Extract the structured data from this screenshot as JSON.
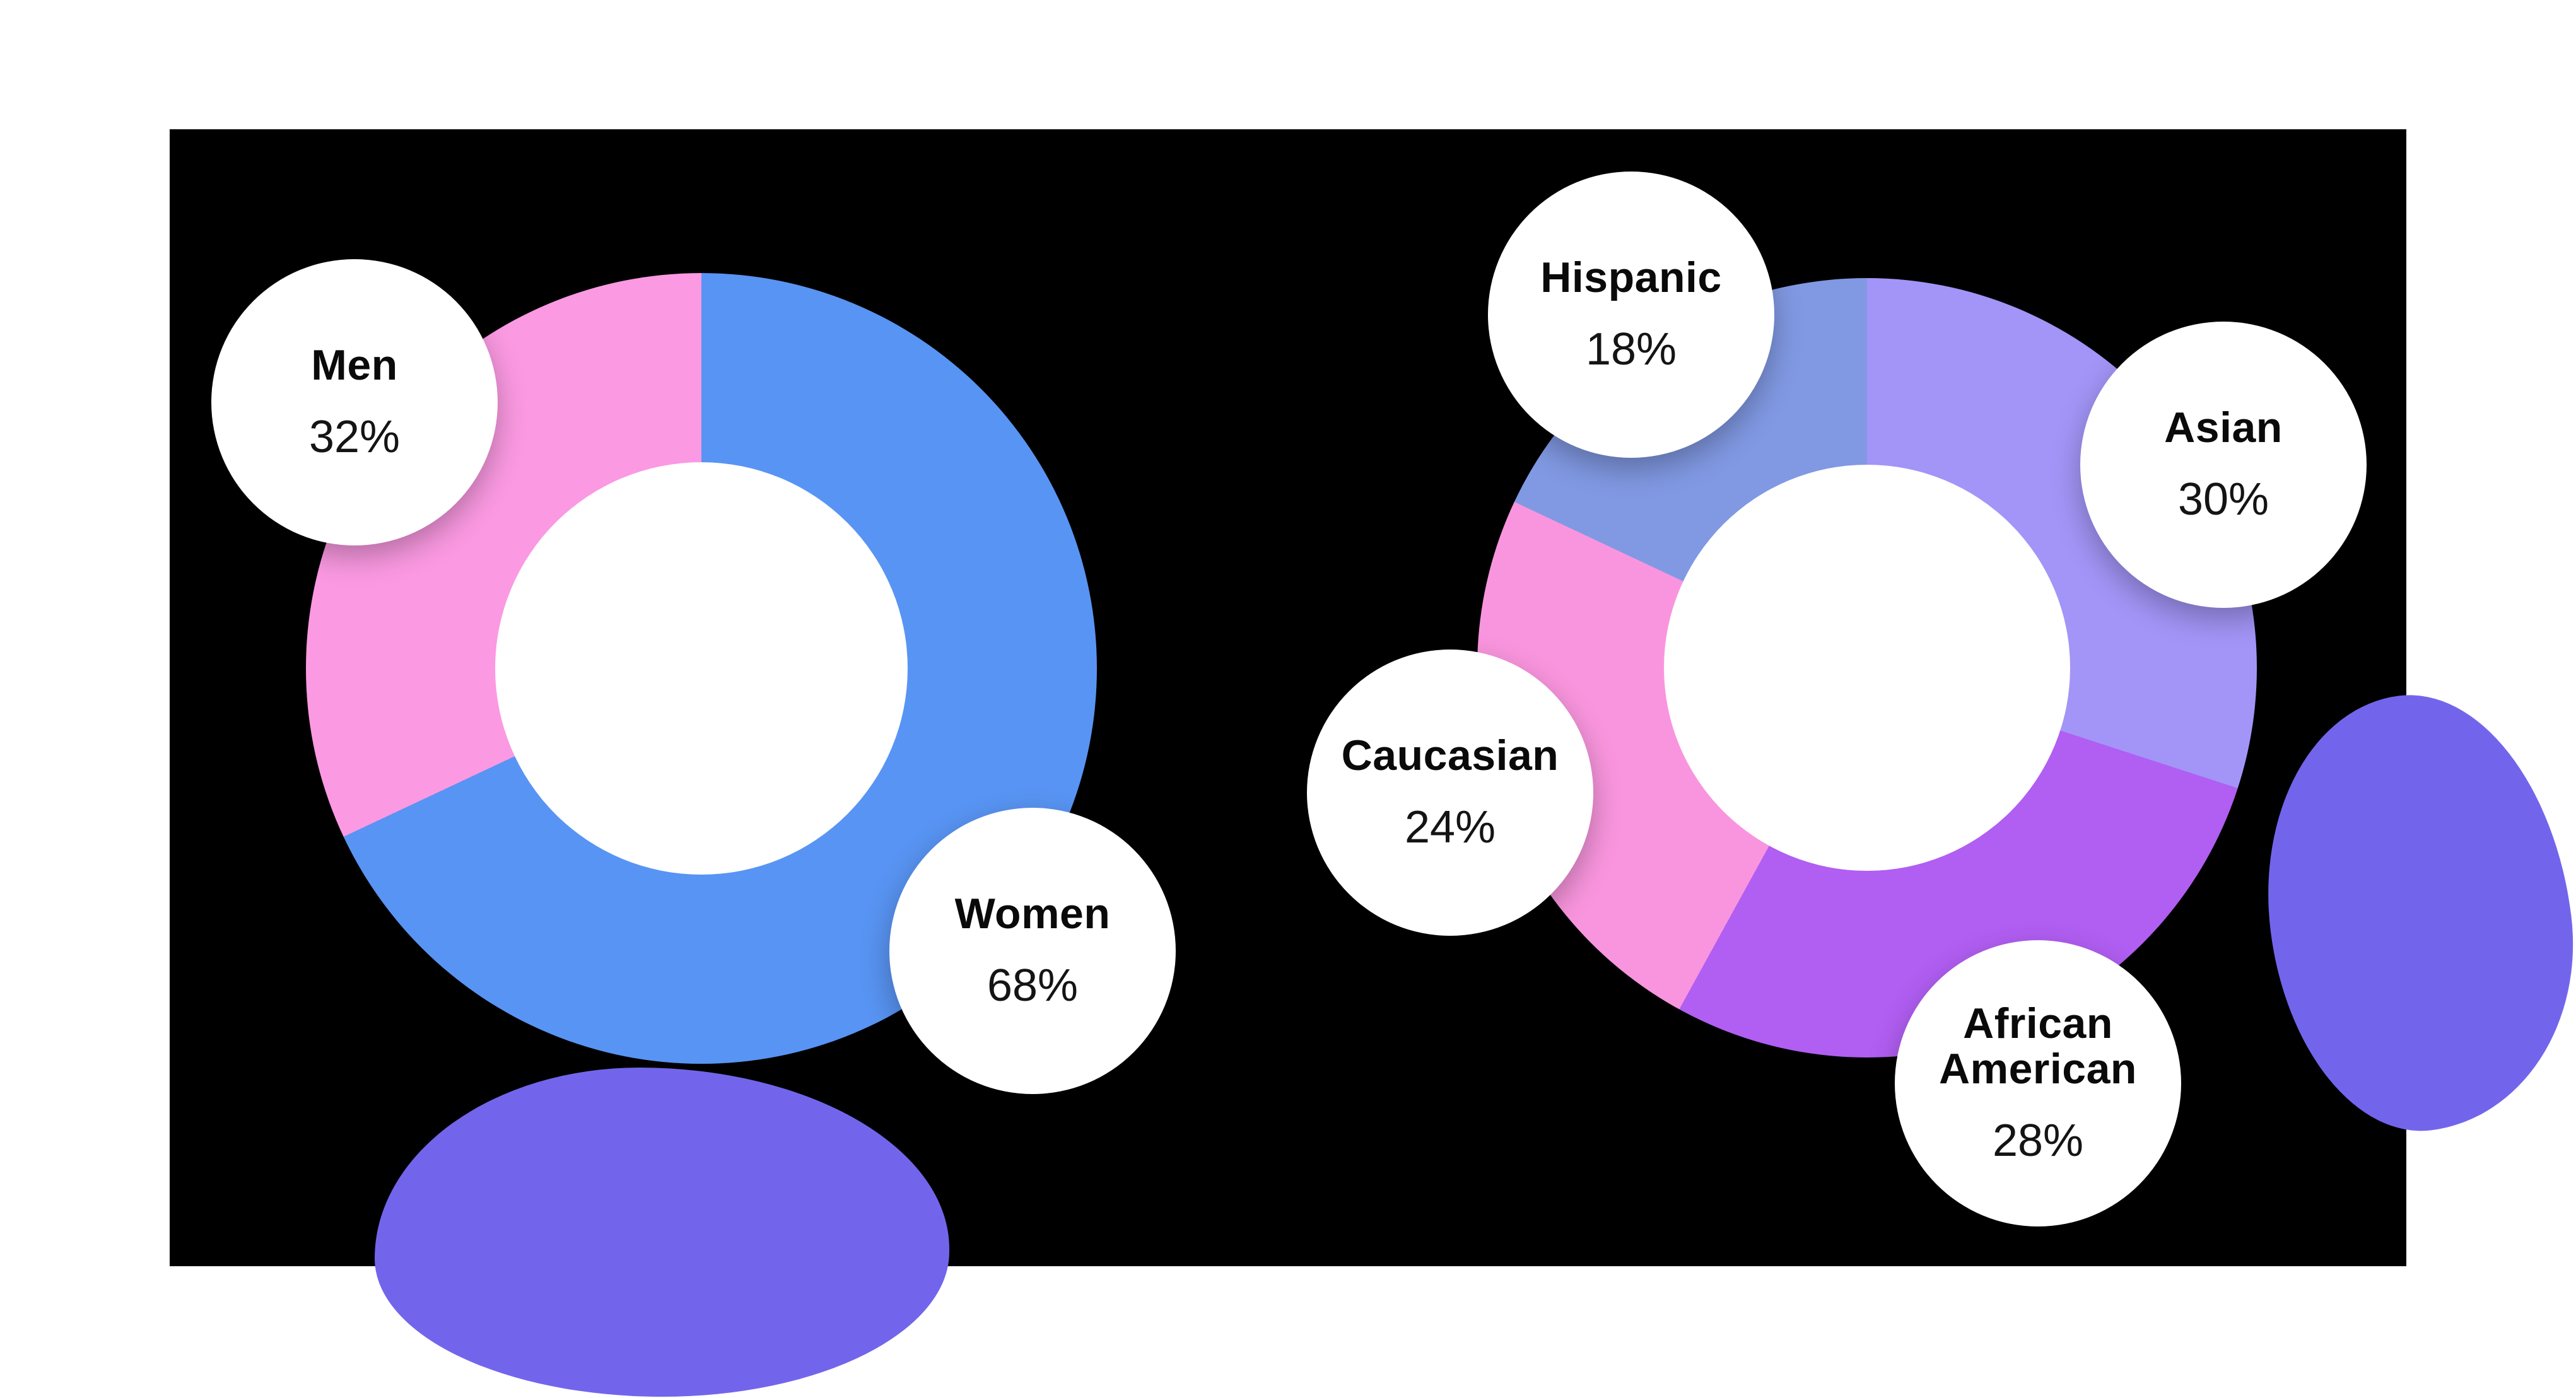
{
  "page": {
    "background_color": "#ffffff",
    "panel_color": "#000000",
    "decoration_blob_color": "#7265ec"
  },
  "chart_data": [
    {
      "type": "pie",
      "subtype": "donut",
      "start_angle_deg": 0,
      "direction": "clockwise",
      "hole_color": "#ffffff",
      "categories": [
        "Women",
        "Men"
      ],
      "values": [
        68,
        32
      ],
      "segments": [
        {
          "label": "Women",
          "value": 68,
          "percent_text": "68%",
          "color": "#5894f3"
        },
        {
          "label": "Men",
          "value": 32,
          "percent_text": "32%",
          "color": "#fb99e2"
        }
      ]
    },
    {
      "type": "pie",
      "subtype": "donut",
      "start_angle_deg": 0,
      "direction": "clockwise",
      "hole_color": "#ffffff",
      "categories": [
        "Asian",
        "African American",
        "Caucasian",
        "Hispanic"
      ],
      "values": [
        30,
        28,
        24,
        18
      ],
      "segments": [
        {
          "label": "Asian",
          "value": 30,
          "percent_text": "30%",
          "color": "#a295f7"
        },
        {
          "label": "African American",
          "value": 28,
          "percent_text": "28%",
          "color": "#b15ef2"
        },
        {
          "label": "Caucasian",
          "value": 24,
          "percent_text": "24%",
          "color": "#f995de"
        },
        {
          "label": "Hispanic",
          "value": 18,
          "percent_text": "18%",
          "color": "#8199e3"
        }
      ]
    }
  ]
}
